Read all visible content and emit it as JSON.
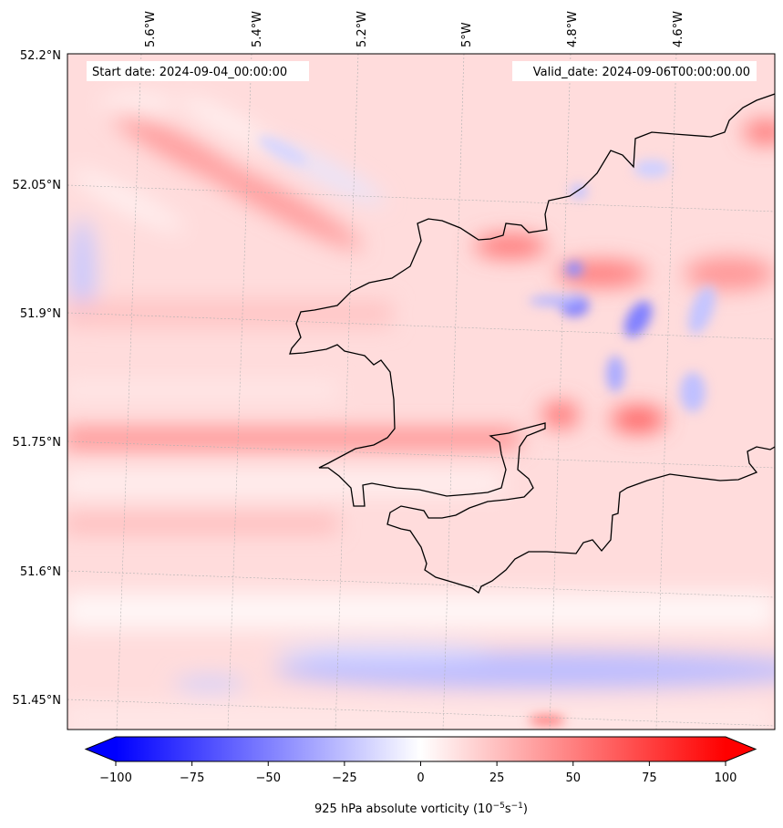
{
  "map": {
    "lon_labels": [
      "5.6°W",
      "5.4°W",
      "5.2°W",
      "5°W",
      "4.8°W",
      "4.6°W"
    ],
    "lat_labels": [
      "52.2°N",
      "52.05°N",
      "51.9°N",
      "51.75°N",
      "51.6°N",
      "51.45°N"
    ],
    "start_date": "Start date: 2024-09-04_00:00:00",
    "valid_date": "Valid_date: 2024-09-06T00:00:00.00",
    "field": "925 hPa absolute vorticity"
  },
  "colorbar": {
    "ticks": [
      -100,
      -75,
      -50,
      -25,
      0,
      25,
      50,
      75,
      100
    ],
    "tick_labels": [
      "−100",
      "−75",
      "−50",
      "−25",
      "0",
      "25",
      "50",
      "75",
      "100"
    ],
    "label": "925 hPa absolute vorticity",
    "label_units": "(10⁻⁵s⁻¹)",
    "range": [
      -100,
      100
    ],
    "color_min": "#0000ff",
    "color_mid": "#ffffff",
    "color_max": "#ff0000",
    "extend": "both"
  },
  "colors": {
    "coastline": "#000000",
    "gridline": "#b0b0b0"
  }
}
